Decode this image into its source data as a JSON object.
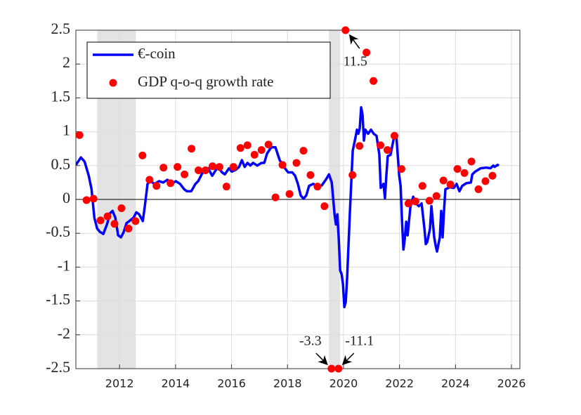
{
  "chart_data": {
    "type": "line",
    "xlim": [
      2010.44,
      2026.3
    ],
    "ylim": [
      -2.5,
      2.5
    ],
    "xticks": [
      2012,
      2014,
      2016,
      2018,
      2020,
      2022,
      2024,
      2026
    ],
    "yticks": [
      2.5,
      2,
      1.5,
      1,
      0.5,
      0,
      -0.5,
      -1,
      -1.5,
      -2,
      -2.5
    ],
    "grid": true,
    "legend": "upper left",
    "shaded_regions": [
      [
        2011.2,
        2012.58
      ],
      [
        2019.48,
        2019.88
      ]
    ],
    "series": [
      {
        "name": "€-coin",
        "type": "line",
        "color": "#0000ff",
        "x": [
          2010.44,
          2010.62,
          2010.75,
          2010.9,
          2011.0,
          2011.1,
          2011.2,
          2011.3,
          2011.42,
          2011.55,
          2011.67,
          2011.75,
          2011.85,
          2011.95,
          2012.05,
          2012.15,
          2012.25,
          2012.38,
          2012.5,
          2012.6,
          2012.7,
          2012.83,
          2012.9,
          2013.0,
          2013.1,
          2013.25,
          2013.41,
          2013.56,
          2013.71,
          2013.86,
          2014.01,
          2014.16,
          2014.31,
          2014.41,
          2014.56,
          2014.71,
          2014.81,
          2014.91,
          2015.01,
          2015.16,
          2015.31,
          2015.51,
          2015.66,
          2015.76,
          2015.91,
          2016.01,
          2016.16,
          2016.27,
          2016.37,
          2016.47,
          2016.57,
          2016.67,
          2016.77,
          2016.92,
          2017.07,
          2017.17,
          2017.27,
          2017.42,
          2017.57,
          2017.72,
          2017.87,
          2018.02,
          2018.17,
          2018.27,
          2018.37,
          2018.47,
          2018.57,
          2018.67,
          2018.77,
          2018.92,
          2019.08,
          2019.23,
          2019.38,
          2019.48,
          2019.58,
          2019.68,
          2019.73,
          2019.78,
          2019.83,
          2019.88,
          2019.93,
          2019.98,
          2020.03,
          2020.08,
          2020.13,
          2020.23,
          2020.33,
          2020.43,
          2020.48,
          2020.53,
          2020.58,
          2020.63,
          2020.68,
          2020.73,
          2020.78,
          2020.88,
          2020.98,
          2021.08,
          2021.18,
          2021.28,
          2021.33,
          2021.38,
          2021.43,
          2021.48,
          2021.53,
          2021.58,
          2021.68,
          2021.79,
          2021.89,
          2021.99,
          2022.04,
          2022.09,
          2022.14,
          2022.19,
          2022.24,
          2022.29,
          2022.39,
          2022.49,
          2022.59,
          2022.69,
          2022.79,
          2022.89,
          2022.94,
          2022.99,
          2023.09,
          2023.14,
          2023.24,
          2023.29,
          2023.34,
          2023.44,
          2023.49,
          2023.54,
          2023.59,
          2023.64,
          2023.79,
          2023.94,
          2024.04,
          2024.14,
          2024.24,
          2024.39,
          2024.55,
          2024.6,
          2024.7,
          2024.9,
          2025.1,
          2025.25,
          2025.35,
          2025.4,
          2025.5,
          2025.55
        ],
        "values": [
          0.51,
          0.62,
          0.56,
          0.35,
          0.15,
          -0.27,
          -0.43,
          -0.48,
          -0.51,
          -0.37,
          -0.2,
          -0.17,
          -0.27,
          -0.53,
          -0.56,
          -0.48,
          -0.35,
          -0.31,
          -0.27,
          -0.19,
          -0.22,
          -0.32,
          -0.11,
          0.23,
          0.27,
          0.23,
          0.27,
          0.25,
          0.29,
          0.23,
          0.27,
          0.23,
          0.15,
          0.12,
          0.12,
          0.23,
          0.27,
          0.35,
          0.44,
          0.46,
          0.35,
          0.48,
          0.4,
          0.37,
          0.46,
          0.41,
          0.44,
          0.48,
          0.58,
          0.48,
          0.54,
          0.5,
          0.54,
          0.5,
          0.54,
          0.54,
          0.68,
          0.77,
          0.77,
          0.58,
          0.48,
          0.4,
          0.4,
          0.35,
          0.23,
          0.06,
          0.01,
          0.06,
          0.2,
          0.23,
          0.18,
          0.21,
          0.3,
          0.37,
          0.25,
          -0.22,
          -0.37,
          -0.22,
          -0.58,
          -1.05,
          -1.1,
          -1.25,
          -1.59,
          -1.51,
          -1.15,
          -0.17,
          0.72,
          0.92,
          1.03,
          0.97,
          1.05,
          1.36,
          1.25,
          0.87,
          1.03,
          0.97,
          1.03,
          0.97,
          0.94,
          0.66,
          0.17,
          0.2,
          0.23,
          0.02,
          0.35,
          0.64,
          0.66,
          0.89,
          0.92,
          0.35,
          0.2,
          -0.32,
          -0.74,
          -0.58,
          -0.33,
          -0.53,
          -0.11,
          0.04,
          -0.06,
          -0.1,
          -0.06,
          -0.43,
          -0.66,
          -0.63,
          -0.43,
          -0.1,
          -0.56,
          -0.68,
          -0.77,
          -0.56,
          -0.17,
          -0.56,
          -0.17,
          0.15,
          0.18,
          0.17,
          0.23,
          0.12,
          0.2,
          0.24,
          0.25,
          0.37,
          0.41,
          0.46,
          0.47,
          0.46,
          0.5,
          0.48,
          0.51,
          0.5
        ]
      },
      {
        "name": "GDP q-o-q growth rate",
        "type": "scatter",
        "color": "#ff0000",
        "x": [
          2010.57,
          2010.82,
          2011.07,
          2011.32,
          2011.57,
          2011.82,
          2012.07,
          2012.32,
          2012.57,
          2012.82,
          2013.07,
          2013.32,
          2013.57,
          2013.82,
          2014.07,
          2014.32,
          2014.57,
          2014.82,
          2015.07,
          2015.32,
          2015.57,
          2015.82,
          2016.07,
          2016.32,
          2016.57,
          2016.82,
          2017.07,
          2017.32,
          2017.57,
          2017.82,
          2018.07,
          2018.32,
          2018.57,
          2018.82,
          2019.07,
          2019.32,
          2019.57,
          2019.82,
          2020.07,
          2020.32,
          2020.57,
          2020.82,
          2021.07,
          2021.32,
          2021.57,
          2021.82,
          2022.07,
          2022.32,
          2022.57,
          2022.82,
          2023.07,
          2023.32,
          2023.57,
          2023.82,
          2024.07,
          2024.32,
          2024.57,
          2024.82,
          2025.07,
          2025.32
        ],
        "values": [
          0.95,
          -0.01,
          0.01,
          -0.31,
          -0.25,
          -0.36,
          -0.13,
          -0.43,
          -0.32,
          0.65,
          0.29,
          0.2,
          0.47,
          0.24,
          0.48,
          0.37,
          0.75,
          0.43,
          0.43,
          0.49,
          0.48,
          0.19,
          0.48,
          0.76,
          0.8,
          0.66,
          0.73,
          0.81,
          0.03,
          0.51,
          0.08,
          0.54,
          0.72,
          0.36,
          0.19,
          -0.1,
          -3.3,
          -11.1,
          11.5,
          0.36,
          0.79,
          2.17,
          1.75,
          0.8,
          0.73,
          0.94,
          0.45,
          -0.06,
          -0.03,
          0.2,
          -0.02,
          0.05,
          0.28,
          0.22,
          0.45,
          0.39,
          0.56,
          0.15,
          0.27,
          0.35
        ],
        "value_labels": [
          null,
          null,
          null,
          null,
          null,
          null,
          null,
          null,
          null,
          null,
          null,
          null,
          null,
          null,
          null,
          null,
          null,
          null,
          null,
          null,
          null,
          null,
          null,
          null,
          null,
          null,
          null,
          null,
          null,
          null,
          null,
          null,
          null,
          null,
          null,
          null,
          "-3.3",
          "-11.1",
          "11.5",
          null,
          null,
          null,
          null,
          null,
          null,
          null,
          null,
          null,
          null,
          null,
          null,
          null,
          null,
          null,
          null,
          null,
          null,
          null,
          null,
          null
        ]
      }
    ]
  }
}
